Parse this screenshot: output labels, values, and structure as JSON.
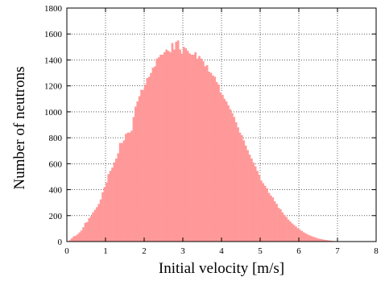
{
  "chart_data": {
    "type": "bar",
    "xlabel": "Initial velocity [m/s]",
    "ylabel": "Number of neutrons",
    "xlim": [
      0,
      8
    ],
    "ylim": [
      0,
      1800
    ],
    "x_ticks": [
      0,
      1,
      2,
      3,
      4,
      5,
      6,
      7,
      8
    ],
    "y_ticks": [
      0,
      200,
      400,
      600,
      800,
      1000,
      1200,
      1400,
      1600,
      1800
    ],
    "grid": true,
    "legend": "none",
    "bar_color": "#ff9999",
    "bin_width": 0.05,
    "bin_start": 0.0,
    "series": [
      {
        "values": [
          2,
          10,
          25,
          40,
          45,
          55,
          70,
          85,
          110,
          145,
          150,
          180,
          195,
          225,
          245,
          265,
          290,
          325,
          380,
          420,
          455,
          520,
          545,
          570,
          610,
          640,
          680,
          760,
          760,
          780,
          830,
          840,
          840,
          855,
          960,
          1040,
          1080,
          1120,
          1170,
          1170,
          1210,
          1260,
          1270,
          1300,
          1340,
          1350,
          1410,
          1420,
          1440,
          1440,
          1460,
          1480,
          1470,
          1460,
          1530,
          1480,
          1540,
          1550,
          1480,
          1450,
          1500,
          1490,
          1470,
          1450,
          1440,
          1440,
          1460,
          1410,
          1430,
          1410,
          1390,
          1350,
          1360,
          1310,
          1300,
          1280,
          1270,
          1230,
          1210,
          1150,
          1130,
          1100,
          1080,
          1050,
          1020,
          990,
          960,
          920,
          880,
          840,
          820,
          780,
          740,
          705,
          670,
          640,
          610,
          580,
          545,
          515,
          470,
          450,
          430,
          410,
          375,
          355,
          340,
          310,
          290,
          260,
          250,
          225,
          205,
          190,
          170,
          155,
          140,
          128,
          115,
          102,
          92,
          82,
          72,
          63,
          55,
          48,
          42,
          36,
          31,
          26,
          22,
          19,
          16,
          13,
          11,
          9,
          7,
          5,
          4,
          3,
          2,
          2,
          1,
          1,
          1,
          0,
          0,
          0,
          0,
          0,
          0,
          0,
          0,
          0,
          0,
          0,
          0,
          0,
          0,
          0
        ]
      }
    ]
  }
}
